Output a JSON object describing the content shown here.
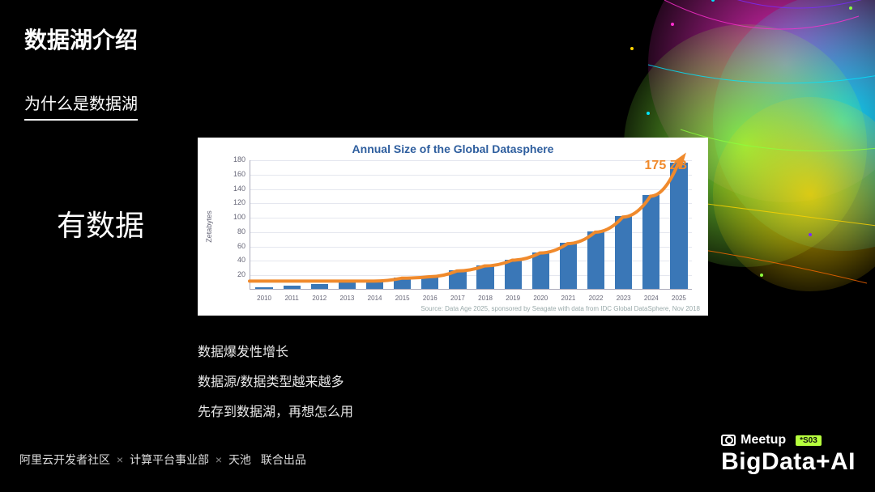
{
  "title": "数据湖介绍",
  "subtitle": "为什么是数据湖",
  "body_label": "有数据",
  "bullets": [
    "数据爆发性增长",
    "数据源/数据类型越来越多",
    "先存到数据湖，再想怎么用"
  ],
  "footer": {
    "parts": [
      "阿里云开发者社区",
      "计算平台事业部",
      "天池"
    ],
    "tail": "联合出品",
    "sep": "×"
  },
  "brand": {
    "meetup_label": "Meetup",
    "badge": "*S03",
    "main": "BigData+AI"
  },
  "chart": {
    "type": "bar+line",
    "title": "Annual Size of the Global Datasphere",
    "ylabel": "Zetabytes",
    "source": "Source: Data Age 2025, sponsored by Seagate with data from IDC Global DataSphere, Nov 2018",
    "callout": {
      "text": "175 ZB",
      "color": "#f08a2c"
    },
    "background_color": "#ffffff",
    "title_color": "#2e5e9e",
    "grid_color": "#e5e7ef",
    "axis_color": "#aab3c2",
    "tick_font_size": 9,
    "bar_color": "#3a77b7",
    "line_color": "#f08a2c",
    "line_width": 4,
    "bar_width_ratio": 0.62,
    "ylim": [
      0,
      180
    ],
    "ytick_step": 20,
    "categories": [
      "2010",
      "2011",
      "2012",
      "2013",
      "2014",
      "2015",
      "2016",
      "2017",
      "2018",
      "2019",
      "2020",
      "2021",
      "2022",
      "2023",
      "2024",
      "2025"
    ],
    "values": [
      2,
      5,
      7,
      9,
      12,
      16,
      18,
      26,
      33,
      41,
      51,
      64,
      80,
      101,
      130,
      175
    ]
  },
  "splash_colors": [
    "#ff2fd0",
    "#00e5ff",
    "#8cff3d",
    "#ffd400",
    "#ff6a00",
    "#7a2bff"
  ]
}
